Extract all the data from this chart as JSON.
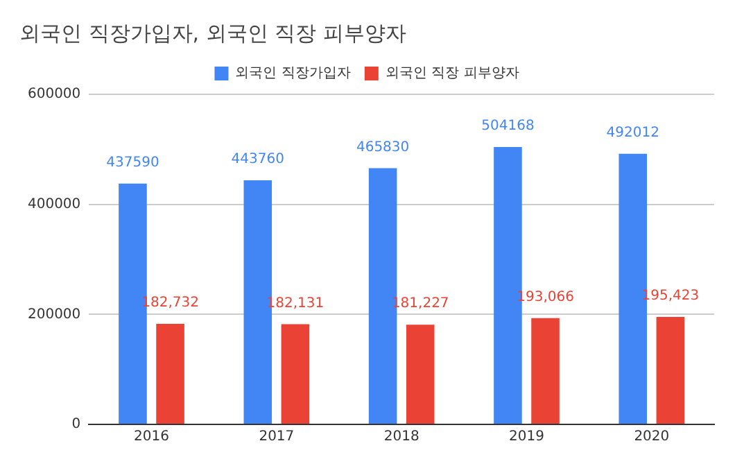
{
  "chart_data": {
    "type": "bar",
    "title": "외국인 직장가입자, 외국인 직장 피부양자",
    "categories": [
      "2016",
      "2017",
      "2018",
      "2019",
      "2020"
    ],
    "series": [
      {
        "name": "외국인 직장가입자",
        "color": "#4285f4",
        "values": [
          437590,
          443760,
          465830,
          504168,
          492012
        ],
        "value_labels": [
          "437590",
          "443760",
          "465830",
          "504168",
          "492012"
        ]
      },
      {
        "name": "외국인 직장 피부양자",
        "color": "#ea4335",
        "values": [
          182732,
          182131,
          181227,
          193066,
          195423
        ],
        "value_labels": [
          "182,732",
          "182,131",
          "181,227",
          "193,066",
          "195,423"
        ]
      }
    ],
    "ylim": [
      0,
      600000
    ],
    "yticks": [
      0,
      200000,
      400000,
      600000
    ],
    "grid": "y",
    "legend": "top"
  }
}
